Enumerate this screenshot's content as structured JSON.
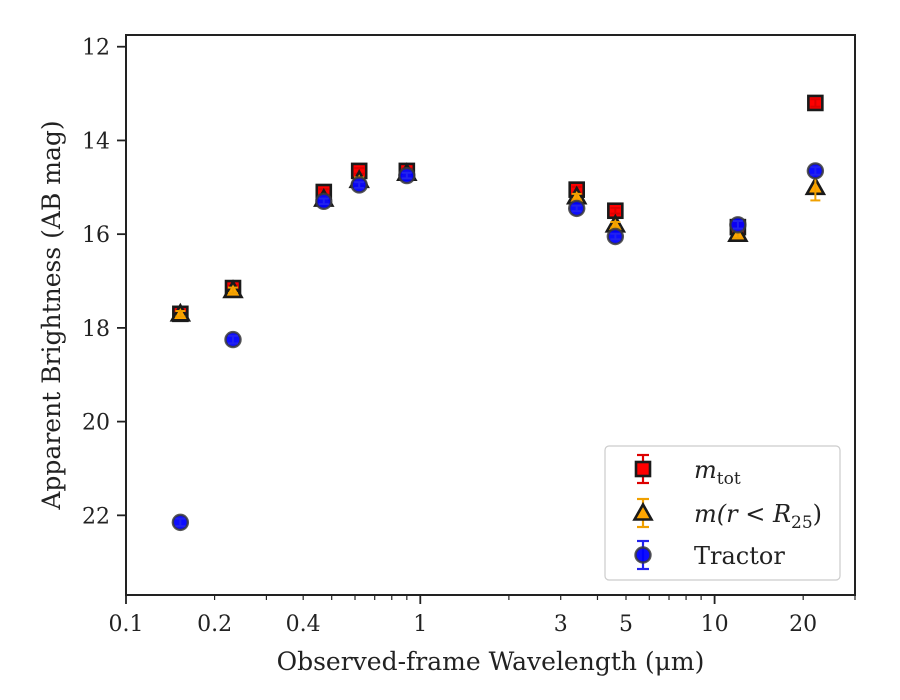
{
  "chart_data": {
    "type": "scatter",
    "xlabel": "Observed-frame Wavelength (μm)",
    "ylabel": "Apparent Brightness (AB mag)",
    "x_scale": "log",
    "xlim": [
      0.1,
      30
    ],
    "ylim": [
      23.7,
      11.75
    ],
    "y_inverted": true,
    "x_ticks": [
      {
        "value": 0.1,
        "label": "0.1"
      },
      {
        "value": 0.2,
        "label": "0.2"
      },
      {
        "value": 0.4,
        "label": "0.4"
      },
      {
        "value": 1,
        "label": "1"
      },
      {
        "value": 3,
        "label": "3"
      },
      {
        "value": 5,
        "label": "5"
      },
      {
        "value": 10,
        "label": "10"
      },
      {
        "value": 20,
        "label": "20"
      }
    ],
    "y_ticks": [
      {
        "value": 12,
        "label": "12"
      },
      {
        "value": 14,
        "label": "14"
      },
      {
        "value": 16,
        "label": "16"
      },
      {
        "value": 18,
        "label": "18"
      },
      {
        "value": 20,
        "label": "20"
      },
      {
        "value": 22,
        "label": "22"
      }
    ],
    "grid": false,
    "legend_position": "lower-right",
    "series": [
      {
        "name": "m_tot",
        "legend_main": "m",
        "legend_sub": "tot",
        "marker": "square",
        "color": "#ff0000",
        "edge": "#1a1a1a",
        "errcolor": "#dd0000",
        "x": [
          0.153,
          0.231,
          0.47,
          0.62,
          0.9,
          3.4,
          4.6,
          12.0,
          22.0
        ],
        "y": [
          17.7,
          17.15,
          15.1,
          14.65,
          14.65,
          15.05,
          15.5,
          15.85,
          13.2
        ],
        "yerr": [
          0.06,
          0.06,
          0.06,
          0.06,
          0.06,
          0.06,
          0.06,
          0.08,
          0.08
        ]
      },
      {
        "name": "m(r < R25)",
        "legend_main": "m(r < R",
        "legend_sub": "25",
        "legend_tail": ")",
        "marker": "triangle",
        "color": "#ffa500",
        "edge": "#1a1a1a",
        "errcolor": "#f0a000",
        "x": [
          0.153,
          0.231,
          0.47,
          0.62,
          0.9,
          3.4,
          4.6,
          12.0,
          22.0
        ],
        "y": [
          17.7,
          17.2,
          15.25,
          14.85,
          14.7,
          15.2,
          15.8,
          16.0,
          15.0
        ],
        "yerr": [
          0.06,
          0.06,
          0.06,
          0.06,
          0.06,
          0.06,
          0.06,
          0.08,
          0.28
        ]
      },
      {
        "name": "Tractor",
        "legend_main": "Tractor",
        "marker": "circle",
        "color": "#0000ff",
        "edge": "#3a3a3a",
        "errcolor": "#2222ee",
        "x": [
          0.153,
          0.231,
          0.47,
          0.62,
          0.9,
          3.4,
          4.6,
          12.0,
          22.0
        ],
        "y": [
          22.15,
          18.25,
          15.3,
          14.95,
          14.75,
          15.45,
          16.05,
          15.8,
          14.65
        ],
        "yerr": [
          0.08,
          0.08,
          0.06,
          0.06,
          0.06,
          0.06,
          0.06,
          0.08,
          0.08
        ]
      }
    ]
  }
}
